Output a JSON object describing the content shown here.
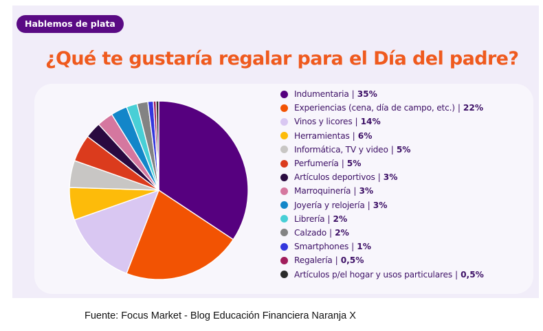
{
  "badge": "Hablemos de plata",
  "caption": "Fuente: Focus Market - Blog Educación Financiera Naranja X",
  "chart_data": {
    "type": "pie",
    "title": "¿Qué te gustaría regalar para el Día del padre?",
    "legend_position": "right",
    "separator": "|",
    "slices": [
      {
        "label": "Indumentaria",
        "value": 35,
        "value_text": "35%",
        "color": "#56007f"
      },
      {
        "label": "Experiencias (cena, día de campo, etc.)",
        "value": 22,
        "value_text": "22%",
        "color": "#f25303"
      },
      {
        "label": "Vinos y licores",
        "value": 14,
        "value_text": "14%",
        "color": "#d9c7f2"
      },
      {
        "label": "Herramientas",
        "value": 6,
        "value_text": "6%",
        "color": "#fdbb0a"
      },
      {
        "label": "Informática, TV y video",
        "value": 5,
        "value_text": "5%",
        "color": "#c8c6c4"
      },
      {
        "label": "Perfumería",
        "value": 5,
        "value_text": "5%",
        "color": "#db3b1d"
      },
      {
        "label": "Artículos deportivos",
        "value": 3,
        "value_text": "3%",
        "color": "#2a0a40"
      },
      {
        "label": "Marroquinería",
        "value": 3,
        "value_text": "3%",
        "color": "#d5779f"
      },
      {
        "label": "Joyería y relojería",
        "value": 3,
        "value_text": "3%",
        "color": "#1386c9"
      },
      {
        "label": "Librería",
        "value": 2,
        "value_text": "2%",
        "color": "#48cfd6"
      },
      {
        "label": "Calzado",
        "value": 2,
        "value_text": "2%",
        "color": "#838383"
      },
      {
        "label": "Smartphones",
        "value": 1,
        "value_text": "1%",
        "color": "#3336dd"
      },
      {
        "label": "Regalería",
        "value": 0.5,
        "value_text": "0,5%",
        "color": "#a11d5c"
      },
      {
        "label": "Artículos p/el hogar y usos particulares",
        "value": 0.5,
        "value_text": "0,5%",
        "color": "#2b2b2b"
      }
    ]
  }
}
